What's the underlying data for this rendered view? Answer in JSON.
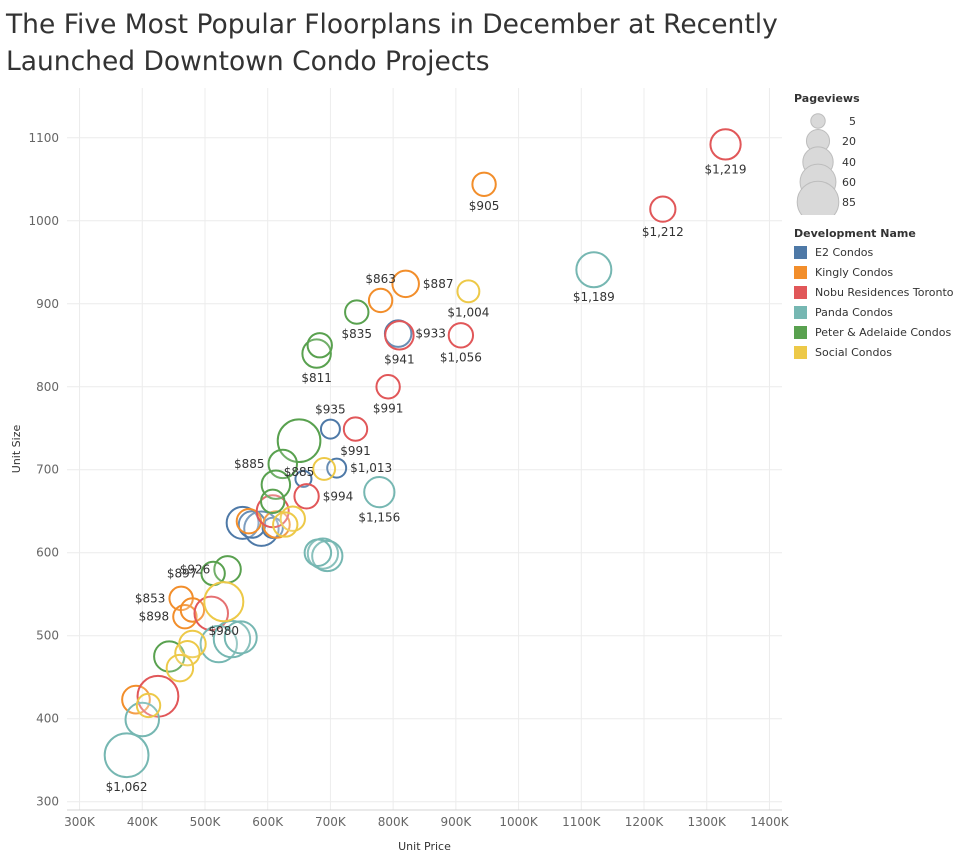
{
  "title_lines": [
    "The Five Most Popular Floorplans in December at Recently",
    " Launched Downtown Condo Projects"
  ],
  "chart_data": {
    "type": "scatter",
    "title": "The Five Most Popular Floorplans in December at Recently Launched Downtown Condo Projects",
    "xlabel": "Unit Price",
    "ylabel": "Unit Size",
    "xlim": [
      280000,
      1420000
    ],
    "ylim": [
      290,
      1160
    ],
    "x_ticks": [
      300000,
      400000,
      500000,
      600000,
      700000,
      800000,
      900000,
      1000000,
      1100000,
      1200000,
      1300000,
      1400000
    ],
    "x_tick_labels": [
      "300K",
      "400K",
      "500K",
      "600K",
      "700K",
      "800K",
      "900K",
      "1000K",
      "1100K",
      "1200K",
      "1300K",
      "1400K"
    ],
    "y_ticks": [
      300,
      400,
      500,
      600,
      700,
      800,
      900,
      1000,
      1100
    ],
    "y_tick_labels": [
      "300",
      "400",
      "500",
      "600",
      "700",
      "800",
      "900",
      "1000",
      "1100"
    ],
    "grid": true,
    "size_legend": {
      "title": "Pageviews",
      "values": [
        5,
        20,
        40,
        60,
        85
      ],
      "labels": [
        "5",
        "20",
        "40",
        "60",
        "85"
      ]
    },
    "color_legend": {
      "title": "Development Name",
      "placement": "right"
    },
    "series": [
      {
        "name": "E2 Condos",
        "color": "#4e79a7",
        "points": [
          {
            "x": 700000,
            "y": 749,
            "pv": 10,
            "label": "$935"
          },
          {
            "x": 808000,
            "y": 864,
            "pv": 25,
            "label": "$933"
          },
          {
            "x": 710000,
            "y": 702,
            "pv": 10,
            "label": "$1,013"
          },
          {
            "x": 657000,
            "y": 689,
            "pv": 6,
            "label": ""
          },
          {
            "x": 560000,
            "y": 636,
            "pv": 40,
            "label": ""
          },
          {
            "x": 590000,
            "y": 629,
            "pv": 48,
            "label": ""
          },
          {
            "x": 575000,
            "y": 634,
            "pv": 25,
            "label": ""
          },
          {
            "x": 608000,
            "y": 630,
            "pv": 12,
            "label": ""
          }
        ]
      },
      {
        "name": "Kingly Condos",
        "color": "#f28e2b",
        "points": [
          {
            "x": 945000,
            "y": 1044,
            "pv": 18,
            "label": "$905"
          },
          {
            "x": 820000,
            "y": 924,
            "pv": 25,
            "label": "$887"
          },
          {
            "x": 780000,
            "y": 904,
            "pv": 18,
            "label": "$863"
          },
          {
            "x": 462000,
            "y": 545,
            "pv": 18,
            "label": "$853"
          },
          {
            "x": 468000,
            "y": 523,
            "pv": 18,
            "label": "$898"
          },
          {
            "x": 480000,
            "y": 531,
            "pv": 18,
            "label": ""
          },
          {
            "x": 570000,
            "y": 638,
            "pv": 20,
            "label": ""
          },
          {
            "x": 614000,
            "y": 634,
            "pv": 25,
            "label": ""
          },
          {
            "x": 390000,
            "y": 423,
            "pv": 28,
            "label": ""
          }
        ]
      },
      {
        "name": "Nobu Residences Toronto",
        "color": "#e15759",
        "points": [
          {
            "x": 1330000,
            "y": 1092,
            "pv": 35,
            "label": "$1,219"
          },
          {
            "x": 1230000,
            "y": 1014,
            "pv": 22,
            "label": "$1,212"
          },
          {
            "x": 908000,
            "y": 862,
            "pv": 20,
            "label": "$1,056"
          },
          {
            "x": 810000,
            "y": 862,
            "pv": 30,
            "label": "$941"
          },
          {
            "x": 792000,
            "y": 800,
            "pv": 18,
            "label": "$991"
          },
          {
            "x": 740000,
            "y": 749,
            "pv": 18,
            "label": "$991"
          },
          {
            "x": 662000,
            "y": 668,
            "pv": 20,
            "label": "$994"
          },
          {
            "x": 608000,
            "y": 650,
            "pv": 40,
            "label": ""
          },
          {
            "x": 510000,
            "y": 527,
            "pv": 45,
            "label": ""
          },
          {
            "x": 425000,
            "y": 427,
            "pv": 72,
            "label": ""
          }
        ]
      },
      {
        "name": "Panda Condos",
        "color": "#76b7b2",
        "points": [
          {
            "x": 1120000,
            "y": 941,
            "pv": 50,
            "label": "$1,189"
          },
          {
            "x": 778000,
            "y": 673,
            "pv": 35,
            "label": "$1,156"
          },
          {
            "x": 375000,
            "y": 356,
            "pv": 85,
            "label": "$1,062"
          },
          {
            "x": 400000,
            "y": 399,
            "pv": 45,
            "label": ""
          },
          {
            "x": 522000,
            "y": 490,
            "pv": 55,
            "label": ""
          },
          {
            "x": 543000,
            "y": 496,
            "pv": 55,
            "label": ""
          },
          {
            "x": 557000,
            "y": 498,
            "pv": 40,
            "label": ""
          },
          {
            "x": 688000,
            "y": 599,
            "pv": 35,
            "label": ""
          },
          {
            "x": 695000,
            "y": 596,
            "pv": 35,
            "label": ""
          },
          {
            "x": 680000,
            "y": 600,
            "pv": 25,
            "label": ""
          }
        ]
      },
      {
        "name": "Peter & Adelaide Condos",
        "color": "#59a14f",
        "points": [
          {
            "x": 742000,
            "y": 890,
            "pv": 18,
            "label": "$835"
          },
          {
            "x": 678000,
            "y": 840,
            "pv": 30,
            "label": "$811"
          },
          {
            "x": 683000,
            "y": 850,
            "pv": 20,
            "label": ""
          },
          {
            "x": 650000,
            "y": 735,
            "pv": 80,
            "label": "$885"
          },
          {
            "x": 624000,
            "y": 707,
            "pv": 30,
            "label": "$885"
          },
          {
            "x": 613000,
            "y": 682,
            "pv": 30,
            "label": ""
          },
          {
            "x": 608000,
            "y": 662,
            "pv": 18,
            "label": ""
          },
          {
            "x": 536000,
            "y": 580,
            "pv": 25,
            "label": "$926"
          },
          {
            "x": 513000,
            "y": 575,
            "pv": 18,
            "label": "$897"
          },
          {
            "x": 443000,
            "y": 475,
            "pv": 35,
            "label": ""
          }
        ]
      },
      {
        "name": "Social Condos",
        "color": "#edc948",
        "points": [
          {
            "x": 920000,
            "y": 915,
            "pv": 15,
            "label": "$1,004"
          },
          {
            "x": 530000,
            "y": 541,
            "pv": 65,
            "label": "$980"
          },
          {
            "x": 690000,
            "y": 701,
            "pv": 15,
            "label": ""
          },
          {
            "x": 640000,
            "y": 641,
            "pv": 20,
            "label": ""
          },
          {
            "x": 628000,
            "y": 634,
            "pv": 20,
            "label": ""
          },
          {
            "x": 480000,
            "y": 490,
            "pv": 25,
            "label": ""
          },
          {
            "x": 472000,
            "y": 479,
            "pv": 20,
            "label": ""
          },
          {
            "x": 460000,
            "y": 461,
            "pv": 25,
            "label": ""
          },
          {
            "x": 410000,
            "y": 416,
            "pv": 18,
            "label": ""
          }
        ]
      }
    ]
  }
}
